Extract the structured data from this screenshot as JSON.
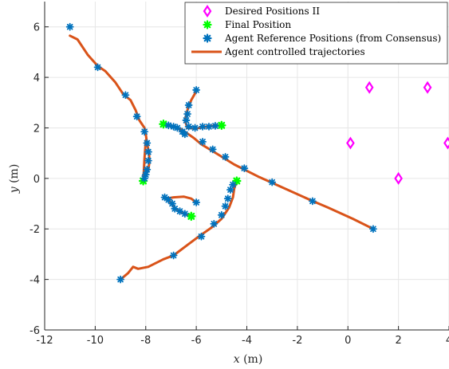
{
  "chart_data": {
    "type": "scatter",
    "xlabel_var": "x",
    "xlabel_unit": "(m)",
    "ylabel_var": "y",
    "ylabel_unit": "(m)",
    "xlim": [
      -12,
      4
    ],
    "ylim": [
      -6,
      7
    ],
    "xticks": [
      -12,
      -10,
      -8,
      -6,
      -4,
      -2,
      0,
      2,
      4
    ],
    "yticks": [
      -6,
      -4,
      -2,
      0,
      2,
      4,
      6
    ],
    "grid": true,
    "legend_position": "top-right",
    "colors": {
      "desired": "#ff00ff",
      "final": "#00ff00",
      "reference": "#0072bd",
      "trajectory": "#d95319",
      "grid": "#e6e6e6",
      "axis": "#262626"
    },
    "legend": [
      {
        "key": "desired",
        "label": "Desired Positions II",
        "marker": "diamond"
      },
      {
        "key": "final",
        "label": "Final Position",
        "marker": "star"
      },
      {
        "key": "reference",
        "label": "Agent Reference Positions (from Consensus)",
        "marker": "star"
      },
      {
        "key": "trajectory",
        "label": "Agent controlled trajectories",
        "marker": "line"
      }
    ],
    "series": [
      {
        "key": "desired",
        "points": [
          [
            0.85,
            3.6
          ],
          [
            3.15,
            3.6
          ],
          [
            0.1,
            1.4
          ],
          [
            3.95,
            1.4
          ],
          [
            2.0,
            0.0
          ]
        ]
      },
      {
        "key": "final",
        "points": [
          [
            -7.3,
            2.15
          ],
          [
            -5.0,
            2.1
          ],
          [
            -8.1,
            -0.1
          ],
          [
            -4.4,
            -0.1
          ],
          [
            -6.2,
            -1.5
          ]
        ]
      },
      {
        "key": "trajectory",
        "lines": [
          [
            [
              -11.0,
              5.65
            ],
            [
              -10.7,
              5.5
            ],
            [
              -10.3,
              4.9
            ],
            [
              -9.9,
              4.45
            ],
            [
              -9.6,
              4.25
            ],
            [
              -9.2,
              3.8
            ],
            [
              -8.9,
              3.35
            ],
            [
              -8.6,
              3.1
            ],
            [
              -8.4,
              2.7
            ],
            [
              -8.25,
              2.3
            ],
            [
              -8.05,
              2.0
            ],
            [
              -8.0,
              1.75
            ],
            [
              -7.95,
              1.4
            ],
            [
              -7.88,
              1.05
            ],
            [
              -7.85,
              0.7
            ],
            [
              -7.9,
              0.3
            ],
            [
              -8.05,
              0.05
            ],
            [
              -8.1,
              -0.1
            ]
          ],
          [
            [
              -8.0,
              1.5
            ],
            [
              -8.05,
              0.8
            ],
            [
              -8.08,
              0.2
            ],
            [
              -8.1,
              -0.1
            ]
          ],
          [
            [
              -9.0,
              -4.0
            ],
            [
              -8.7,
              -3.75
            ],
            [
              -8.5,
              -3.5
            ],
            [
              -8.3,
              -3.58
            ],
            [
              -7.9,
              -3.5
            ],
            [
              -7.3,
              -3.2
            ],
            [
              -6.9,
              -3.05
            ],
            [
              -6.3,
              -2.6
            ],
            [
              -5.9,
              -2.3
            ],
            [
              -5.4,
              -1.95
            ],
            [
              -5.0,
              -1.6
            ],
            [
              -4.7,
              -1.15
            ],
            [
              -4.55,
              -0.75
            ],
            [
              -4.5,
              -0.4
            ],
            [
              -4.4,
              -0.1
            ]
          ],
          [
            [
              -6.0,
              3.45
            ],
            [
              -6.2,
              3.1
            ],
            [
              -6.35,
              2.7
            ],
            [
              -6.45,
              2.3
            ],
            [
              -6.35,
              2.0
            ],
            [
              -6.0,
              1.98
            ],
            [
              -5.6,
              2.05
            ],
            [
              -5.3,
              2.08
            ],
            [
              -5.0,
              2.1
            ]
          ],
          [
            [
              -7.3,
              2.15
            ],
            [
              -6.95,
              2.05
            ],
            [
              -6.75,
              2.0
            ],
            [
              -6.55,
              1.85
            ],
            [
              -6.45,
              1.75
            ]
          ],
          [
            [
              -7.3,
              -0.75
            ],
            [
              -7.0,
              -0.95
            ],
            [
              -6.85,
              -1.2
            ],
            [
              -6.6,
              -1.35
            ],
            [
              -6.2,
              -1.5
            ]
          ],
          [
            [
              -7.2,
              -0.8
            ],
            [
              -6.9,
              -0.75
            ],
            [
              -6.5,
              -0.72
            ],
            [
              -6.2,
              -0.8
            ],
            [
              -6.0,
              -0.95
            ]
          ],
          [
            [
              -7.3,
              2.15
            ],
            [
              -6.6,
              1.95
            ],
            [
              -6.1,
              1.6
            ],
            [
              -5.8,
              1.35
            ],
            [
              -5.3,
              1.05
            ],
            [
              -4.5,
              0.55
            ],
            [
              -3.5,
              0.05
            ],
            [
              -2.5,
              -0.4
            ],
            [
              -1.5,
              -0.85
            ],
            [
              -0.8,
              -1.15
            ],
            [
              0.2,
              -1.6
            ],
            [
              1.0,
              -2.0
            ]
          ]
        ]
      },
      {
        "key": "reference",
        "points": [
          [
            -11.0,
            6.0
          ],
          [
            -9.9,
            4.4
          ],
          [
            -8.8,
            3.3
          ],
          [
            -8.35,
            2.45
          ],
          [
            -8.05,
            1.85
          ],
          [
            -7.95,
            1.4
          ],
          [
            -7.9,
            1.05
          ],
          [
            -7.9,
            0.7
          ],
          [
            -7.95,
            0.35
          ],
          [
            -8.0,
            0.15
          ],
          [
            -8.05,
            0.0
          ],
          [
            -9.0,
            -4.0
          ],
          [
            -6.9,
            -3.05
          ],
          [
            -5.8,
            -2.3
          ],
          [
            -5.3,
            -1.8
          ],
          [
            -5.0,
            -1.45
          ],
          [
            -4.85,
            -1.1
          ],
          [
            -4.75,
            -0.8
          ],
          [
            -4.65,
            -0.45
          ],
          [
            -4.55,
            -0.25
          ],
          [
            -6.0,
            3.5
          ],
          [
            -6.3,
            2.9
          ],
          [
            -6.35,
            2.55
          ],
          [
            -6.4,
            2.3
          ],
          [
            -6.3,
            2.05
          ],
          [
            -6.05,
            2.0
          ],
          [
            -5.75,
            2.05
          ],
          [
            -5.5,
            2.05
          ],
          [
            -5.25,
            2.08
          ],
          [
            -7.1,
            2.1
          ],
          [
            -6.9,
            2.05
          ],
          [
            -6.75,
            2.0
          ],
          [
            -6.55,
            1.85
          ],
          [
            -6.45,
            1.75
          ],
          [
            -7.25,
            -0.75
          ],
          [
            -7.1,
            -0.85
          ],
          [
            -6.95,
            -1.0
          ],
          [
            -6.85,
            -1.2
          ],
          [
            -6.65,
            -1.3
          ],
          [
            -6.45,
            -1.4
          ],
          [
            -6.0,
            -0.95
          ],
          [
            -5.75,
            1.45
          ],
          [
            -5.35,
            1.15
          ],
          [
            -4.85,
            0.85
          ],
          [
            -4.1,
            0.4
          ],
          [
            -3.0,
            -0.15
          ],
          [
            -1.4,
            -0.9
          ],
          [
            1.0,
            -2.0
          ]
        ]
      }
    ]
  }
}
